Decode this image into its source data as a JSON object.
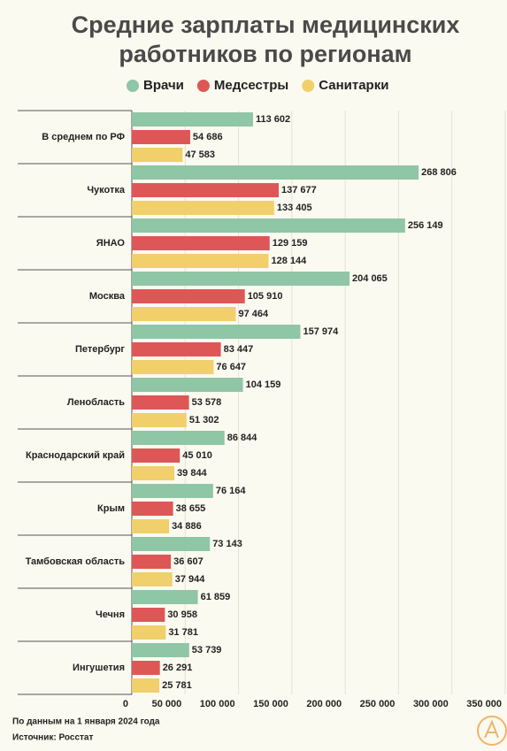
{
  "chart_data": {
    "type": "hbar",
    "title": [
      "Средние зарплаты медицинских",
      "работников по регионам"
    ],
    "categories": [
      "В среднем по РФ",
      "Чукотка",
      "ЯНАО",
      "Москва",
      "Петербург",
      "Ленобласть",
      "Краснодарский край",
      "Крым",
      "Тамбовская область",
      "Чечня",
      "Ингушетия"
    ],
    "series": [
      {
        "name": "Врачи",
        "color": "#8fc6a6",
        "values": [
          113602,
          268806,
          256149,
          204065,
          157974,
          104159,
          86844,
          76164,
          73143,
          61859,
          53739
        ],
        "value_labels": [
          "113 602",
          "268 806",
          "256 149",
          "204 065",
          "157 974",
          "104 159",
          "86 844",
          "76 164",
          "73 143",
          "61 859",
          "53 739"
        ]
      },
      {
        "name": "Медсестры",
        "color": "#de5757",
        "values": [
          54686,
          137677,
          129159,
          105910,
          83447,
          53578,
          45010,
          38655,
          36607,
          30958,
          26291
        ],
        "value_labels": [
          "54 686",
          "137 677",
          "129 159",
          "105 910",
          "83 447",
          "53 578",
          "45 010",
          "38 655",
          "36 607",
          "30 958",
          "26 291"
        ]
      },
      {
        "name": "Санитарки",
        "color": "#f1cf6b",
        "values": [
          47583,
          133405,
          128144,
          97464,
          76647,
          51302,
          39844,
          34886,
          37944,
          31781,
          25781
        ],
        "value_labels": [
          "47 583",
          "133 405",
          "128 144",
          "97 464",
          "76 647",
          "51 302",
          "39 844",
          "34 886",
          "37 944",
          "31 781",
          "25 781"
        ]
      }
    ],
    "xlim": [
      0,
      350000
    ],
    "xticks": [
      0,
      {
        "value": 50000,
        "label": "50 000"
      },
      {
        "value": 100000,
        "label": "100 000"
      },
      {
        "value": 150000,
        "label": "150 000"
      },
      {
        "value": 200000,
        "label": "200 000"
      },
      {
        "value": 250000,
        "label": "250 000"
      },
      {
        "value": 300000,
        "label": "300 000"
      },
      {
        "value": 350000,
        "label": "350 000"
      }
    ],
    "grid": true,
    "notes": [
      "По данным на 1 января 2024 года",
      "Источник: Росстат"
    ]
  }
}
